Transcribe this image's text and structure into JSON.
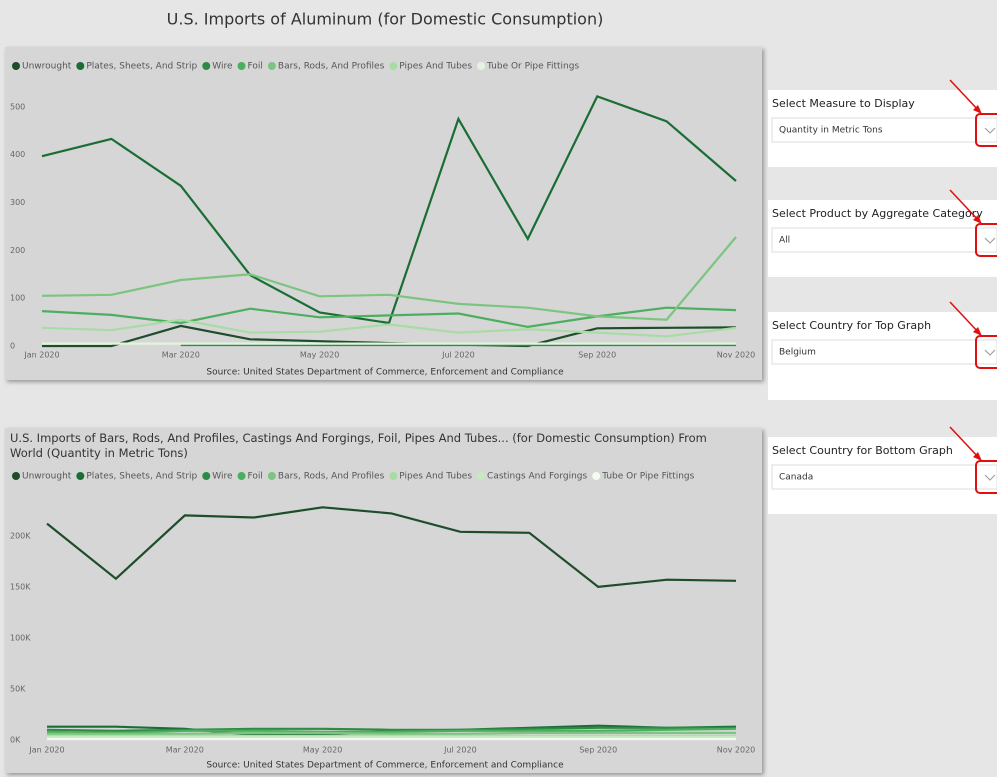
{
  "chart_data": [
    {
      "type": "line",
      "title": "U.S. Imports of Aluminum (for Domestic Consumption)",
      "caption": "Source: United States Department of Commerce, Enforcement and Compliance",
      "categories": [
        "Jan 2020",
        null,
        "Mar 2020",
        null,
        "May 2020",
        null,
        "Jul 2020",
        null,
        "Sep 2020",
        null,
        "Nov 2020"
      ],
      "ylim": [
        0,
        550
      ],
      "yticks": [
        0,
        100,
        200,
        300,
        400,
        500
      ],
      "series": [
        {
          "name": "Unwrought",
          "color": "#1e4d2b",
          "values": [
            0,
            0,
            42,
            14,
            10,
            6,
            3,
            0,
            37,
            38,
            39
          ]
        },
        {
          "name": "Plates, Sheets, And Strip",
          "color": "#1a6e34",
          "values": [
            397,
            433,
            335,
            148,
            70,
            48,
            475,
            224,
            522,
            470,
            345
          ]
        },
        {
          "name": "Wire",
          "color": "#2e8b45",
          "values": [
            null,
            null,
            2,
            2,
            2,
            2,
            2,
            2,
            2,
            2,
            2
          ]
        },
        {
          "name": "Foil",
          "color": "#4caf5f",
          "values": [
            73,
            65,
            48,
            78,
            60,
            64,
            68,
            40,
            62,
            80,
            75
          ]
        },
        {
          "name": "Bars, Rods, And Profiles",
          "color": "#7cc47f",
          "values": [
            105,
            107,
            138,
            150,
            104,
            107,
            88,
            80,
            62,
            55,
            228
          ]
        },
        {
          "name": "Pipes And Tubes",
          "color": "#a9dba4",
          "values": [
            38,
            33,
            55,
            28,
            30,
            45,
            28,
            35,
            28,
            20,
            38
          ]
        },
        {
          "name": "Tube Or Pipe Fittings",
          "color": "#e3f4de",
          "values": [
            5,
            5,
            5,
            5,
            5,
            5,
            5,
            5,
            5,
            5,
            5
          ]
        }
      ]
    },
    {
      "type": "line",
      "title": "U.S. Imports of Bars, Rods, And Profiles, Castings And Forgings, Foil, Pipes And Tubes... (for Domestic Consumption) From World (Quantity in Metric Tons)",
      "caption": "Source: United States Department of Commerce, Enforcement and Compliance",
      "categories": [
        "Jan 2020",
        null,
        "Mar 2020",
        null,
        "May 2020",
        null,
        "Jul 2020",
        null,
        "Sep 2020",
        null,
        "Nov 2020"
      ],
      "ylim": [
        0,
        240000
      ],
      "yticks": [
        {
          "value": 0,
          "label": "0K"
        },
        {
          "value": 50000,
          "label": "50K"
        },
        {
          "value": 100000,
          "label": "100K"
        },
        {
          "value": 150000,
          "label": "150K"
        },
        {
          "value": 200000,
          "label": "200K"
        }
      ],
      "series": [
        {
          "name": "Unwrought",
          "color": "#1e4d2b",
          "values": [
            212000,
            158000,
            220000,
            218000,
            228000,
            222000,
            204000,
            203000,
            150000,
            157000,
            156000
          ]
        },
        {
          "name": "Plates, Sheets, And Strip",
          "color": "#1a6e34",
          "values": [
            13000,
            13000,
            11000,
            5000,
            5000,
            9000,
            10000,
            12000,
            14000,
            12000,
            13000
          ]
        },
        {
          "name": "Wire",
          "color": "#2e8b45",
          "values": [
            10000,
            9000,
            10000,
            11000,
            11000,
            10000,
            10000,
            11000,
            12000,
            12000,
            12000
          ]
        },
        {
          "name": "Foil",
          "color": "#4caf5f",
          "values": [
            8000,
            7000,
            9000,
            9000,
            8000,
            8000,
            9000,
            9000,
            9000,
            10000,
            11000
          ]
        },
        {
          "name": "Bars, Rods, And Profiles",
          "color": "#7cc47f",
          "values": [
            6000,
            6000,
            6000,
            7000,
            7000,
            6000,
            6000,
            7000,
            7000,
            7000,
            7000
          ]
        },
        {
          "name": "Pipes And Tubes",
          "color": "#a9dba4",
          "values": [
            4000,
            4000,
            4000,
            4000,
            4000,
            4000,
            4000,
            4000,
            4000,
            4000,
            4000
          ]
        },
        {
          "name": "Castings And Forgings",
          "color": "#c8e8c0",
          "values": [
            3000,
            3000,
            3000,
            3000,
            3000,
            3000,
            3000,
            3000,
            3000,
            3000,
            3000
          ]
        },
        {
          "name": "Tube Or Pipe Fittings",
          "color": "#f4fbf2",
          "values": [
            1000,
            1000,
            1000,
            1000,
            1000,
            1000,
            1000,
            1000,
            1000,
            1000,
            1000
          ]
        }
      ]
    }
  ],
  "slicers": [
    {
      "label": "Select Measure to Display",
      "value": "Quantity in Metric Tons"
    },
    {
      "label": "Select Product by Aggregate Category",
      "value": "All"
    },
    {
      "label": "Select Country for Top Graph",
      "value": "Belgium"
    },
    {
      "label": "Select Country for Bottom Graph",
      "value": "Canada"
    }
  ]
}
